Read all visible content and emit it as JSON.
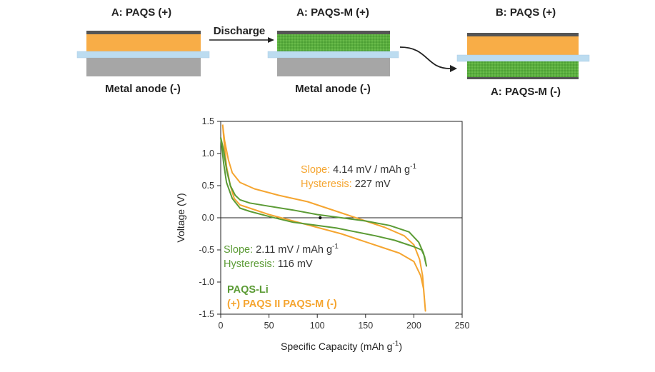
{
  "schematic": {
    "cell_a": {
      "title": "A: PAQS (+)",
      "bottom_label": "Metal anode (-)"
    },
    "arrow_label": "Discharge",
    "cell_b": {
      "title": "A: PAQS-M (+)",
      "bottom_label": "Metal anode (-)"
    },
    "cell_c": {
      "title": "B: PAQS (+)",
      "bottom_label": "A: PAQS-M (-)"
    },
    "colors": {
      "orange": "#f8ad47",
      "green": "#5aae3e",
      "grey": "#a6a6a6",
      "separator": "#bcdcf0",
      "collector": "#555555"
    }
  },
  "chart_data": {
    "type": "line",
    "xlabel": "Specific Capacity (mAh g",
    "xlabel_sup": "-1",
    "xlabel_end": ")",
    "ylabel": "Voltage (V)",
    "xlim": [
      0,
      250
    ],
    "ylim": [
      -1.5,
      1.5
    ],
    "xticks": [
      0,
      50,
      100,
      150,
      200,
      250
    ],
    "yticks": [
      1.5,
      1.0,
      0.5,
      0.0,
      -0.5,
      -1.0,
      -1.5
    ],
    "ytick_labels": [
      "1.5",
      "1.0",
      "0.5",
      "0.0",
      "-0.5",
      "-1.0",
      "-1.5"
    ],
    "zero_line": true,
    "series": [
      {
        "name": "PAQS-Li",
        "color": "#5b9b35",
        "branch_upper": [
          [
            0,
            1.25
          ],
          [
            3,
            1.05
          ],
          [
            6,
            0.75
          ],
          [
            10,
            0.5
          ],
          [
            15,
            0.35
          ],
          [
            20,
            0.28
          ],
          [
            30,
            0.23
          ],
          [
            50,
            0.18
          ],
          [
            75,
            0.12
          ],
          [
            100,
            0.05
          ],
          [
            125,
            0.0
          ],
          [
            150,
            -0.05
          ],
          [
            175,
            -0.12
          ],
          [
            195,
            -0.22
          ],
          [
            205,
            -0.38
          ],
          [
            210,
            -0.55
          ],
          [
            213,
            -0.75
          ]
        ],
        "branch_lower": [
          [
            213,
            -0.75
          ],
          [
            211,
            -0.6
          ],
          [
            208,
            -0.5
          ],
          [
            200,
            -0.45
          ],
          [
            180,
            -0.35
          ],
          [
            160,
            -0.28
          ],
          [
            140,
            -0.22
          ],
          [
            120,
            -0.16
          ],
          [
            100,
            -0.12
          ],
          [
            75,
            -0.07
          ],
          [
            50,
            0.02
          ],
          [
            30,
            0.1
          ],
          [
            20,
            0.15
          ],
          [
            12,
            0.3
          ],
          [
            6,
            0.55
          ],
          [
            3,
            0.85
          ],
          [
            0,
            1.25
          ]
        ]
      },
      {
        "name": "(+) PAQS II PAQS-M (-)",
        "color": "#f5a530",
        "branch_upper": [
          [
            2,
            1.45
          ],
          [
            4,
            1.2
          ],
          [
            8,
            0.9
          ],
          [
            12,
            0.7
          ],
          [
            20,
            0.55
          ],
          [
            35,
            0.45
          ],
          [
            60,
            0.35
          ],
          [
            90,
            0.25
          ],
          [
            110,
            0.15
          ],
          [
            130,
            0.05
          ],
          [
            150,
            -0.05
          ],
          [
            170,
            -0.15
          ],
          [
            190,
            -0.28
          ],
          [
            200,
            -0.42
          ],
          [
            206,
            -0.65
          ],
          [
            209,
            -0.9
          ],
          [
            212,
            -1.45
          ]
        ],
        "branch_lower": [
          [
            212,
            -1.45
          ],
          [
            210,
            -1.1
          ],
          [
            207,
            -0.9
          ],
          [
            200,
            -0.68
          ],
          [
            185,
            -0.55
          ],
          [
            165,
            -0.45
          ],
          [
            145,
            -0.35
          ],
          [
            125,
            -0.25
          ],
          [
            100,
            -0.15
          ],
          [
            75,
            -0.05
          ],
          [
            50,
            0.05
          ],
          [
            30,
            0.15
          ],
          [
            20,
            0.2
          ],
          [
            14,
            0.3
          ],
          [
            10,
            0.5
          ],
          [
            6,
            0.8
          ],
          [
            4,
            1.1
          ],
          [
            2,
            1.45
          ]
        ]
      }
    ],
    "marker": {
      "x": 103,
      "y": 0.0
    },
    "annotations": {
      "orange": {
        "slope_label": "Slope:",
        "slope_value": "4.14 mV / mAh g",
        "slope_sup": "-1",
        "hyst_label": "Hysteresis:",
        "hyst_value": "227 mV"
      },
      "green": {
        "slope_label": "Slope:",
        "slope_value": "2.11 mV / mAh g",
        "slope_sup": "-1",
        "hyst_label": "Hysteresis:",
        "hyst_value": "116 mV"
      }
    },
    "legend": [
      "PAQS-Li",
      "(+) PAQS II PAQS-M (-)"
    ]
  }
}
